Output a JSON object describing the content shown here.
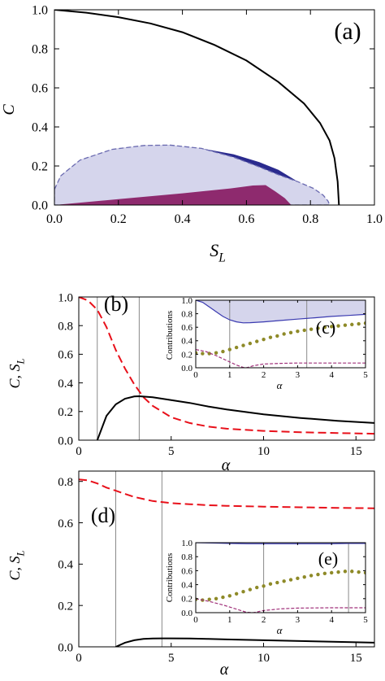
{
  "figure": {
    "panels": [
      {
        "id": "a",
        "label": "(a)"
      },
      {
        "id": "b",
        "label": "(b)"
      },
      {
        "id": "c",
        "label": "(c)"
      },
      {
        "id": "d",
        "label": "(d)"
      },
      {
        "id": "e",
        "label": "(e)"
      }
    ]
  },
  "chart_data": [
    {
      "id": "a",
      "type": "area",
      "label": "(a)",
      "xlabel": "S_L",
      "ylabel": "C",
      "xlim": [
        0,
        1
      ],
      "ylim": [
        0,
        1
      ],
      "xticks": [
        "0.0",
        "0.2",
        "0.4",
        "0.6",
        "0.8",
        "1.0"
      ],
      "yticks": [
        "0.0",
        "0.2",
        "0.4",
        "0.6",
        "0.8",
        "1.0"
      ],
      "series": [
        {
          "kind": "line",
          "color": "#000000",
          "x": [
            0,
            0.1,
            0.2,
            0.3,
            0.4,
            0.5,
            0.6,
            0.7,
            0.78,
            0.83,
            0.86,
            0.875,
            0.885,
            0.889
          ],
          "y": [
            1.0,
            0.985,
            0.962,
            0.93,
            0.885,
            0.82,
            0.74,
            0.63,
            0.52,
            0.42,
            0.33,
            0.24,
            0.12,
            0.0
          ]
        },
        {
          "kind": "region",
          "color": "#2a2a8e",
          "x": [
            0.0,
            0.02,
            0.08,
            0.18,
            0.28,
            0.36,
            0.46,
            0.56,
            0.64,
            0.7,
            0.75,
            0.79,
            0.81,
            0.82,
            0.82,
            0.79,
            0.72,
            0.6,
            0.4,
            0.2,
            0.0
          ],
          "y": [
            0.08,
            0.15,
            0.23,
            0.285,
            0.305,
            0.307,
            0.29,
            0.26,
            0.22,
            0.18,
            0.13,
            0.08,
            0.05,
            0.02,
            0.0,
            0.0,
            0.0,
            0.0,
            0.0,
            0.0,
            0.0
          ]
        },
        {
          "kind": "region",
          "color": "#d5d5ec",
          "border": "dashed",
          "border_color": "#6a6ab0",
          "x": [
            0.0,
            0.02,
            0.08,
            0.18,
            0.28,
            0.36,
            0.46,
            0.56,
            0.64,
            0.7,
            0.76,
            0.81,
            0.84,
            0.855,
            0.86,
            0.0
          ],
          "y": [
            0.08,
            0.15,
            0.23,
            0.285,
            0.305,
            0.307,
            0.29,
            0.245,
            0.195,
            0.155,
            0.12,
            0.085,
            0.05,
            0.02,
            0.0,
            0.0
          ]
        },
        {
          "kind": "region",
          "color": "#8e2a6e",
          "x": [
            0.0,
            0.2,
            0.4,
            0.55,
            0.62,
            0.66,
            0.69,
            0.72,
            0.74,
            0.0
          ],
          "y": [
            0.0,
            0.03,
            0.06,
            0.085,
            0.1,
            0.102,
            0.07,
            0.035,
            0.0,
            0.0
          ]
        }
      ]
    },
    {
      "id": "b",
      "type": "line",
      "label": "(b)",
      "xlabel": "α",
      "ylabel": "C,  S_L",
      "xlim": [
        0,
        16
      ],
      "ylim": [
        0,
        1
      ],
      "xticks": [
        "0",
        "5",
        "10",
        "15"
      ],
      "yticks": [
        "0.0",
        "0.2",
        "0.4",
        "0.6",
        "0.8",
        "1.0"
      ],
      "vlines": [
        1.0,
        3.27
      ],
      "series": [
        {
          "style": "dashed",
          "color": "#e8101a",
          "x": [
            0,
            0.5,
            1,
            1.5,
            2,
            2.5,
            3,
            3.5,
            4,
            5,
            6,
            7,
            8,
            10,
            12,
            14,
            16
          ],
          "y": [
            1.0,
            0.975,
            0.91,
            0.79,
            0.63,
            0.5,
            0.39,
            0.3,
            0.24,
            0.16,
            0.12,
            0.095,
            0.08,
            0.065,
            0.055,
            0.05,
            0.045
          ]
        },
        {
          "style": "solid",
          "color": "#000000",
          "x": [
            1.0,
            1.5,
            2,
            2.5,
            3,
            3.27,
            4,
            5,
            6,
            7,
            8,
            10,
            12,
            14,
            16
          ],
          "y": [
            0.0,
            0.17,
            0.25,
            0.29,
            0.305,
            0.307,
            0.3,
            0.28,
            0.26,
            0.235,
            0.215,
            0.18,
            0.155,
            0.135,
            0.12
          ]
        }
      ]
    },
    {
      "id": "c",
      "type": "line",
      "label": "(c)",
      "xlabel": "α",
      "ylabel": "Contributions",
      "xlim": [
        0,
        5
      ],
      "ylim": [
        0,
        1
      ],
      "xticks": [
        "0",
        "1",
        "2",
        "3",
        "4",
        "5"
      ],
      "yticks": [
        "0.0",
        "0.2",
        "0.4",
        "0.6",
        "0.8",
        "1.0"
      ],
      "vlines": [
        1.0,
        3.27
      ],
      "series": [
        {
          "style": "solid",
          "color": "#3a3ab0",
          "fill": "#d5d5ec",
          "x": [
            0,
            0.2,
            0.4,
            0.6,
            0.8,
            1.0,
            1.2,
            1.4,
            1.6,
            2,
            2.5,
            3,
            3.5,
            4,
            4.5,
            5
          ],
          "y": [
            1.0,
            0.97,
            0.9,
            0.83,
            0.76,
            0.71,
            0.68,
            0.665,
            0.668,
            0.68,
            0.7,
            0.72,
            0.74,
            0.76,
            0.775,
            0.79
          ]
        },
        {
          "style": "dotted",
          "color": "#8e8a28",
          "x": [
            0,
            0.2,
            0.4,
            0.6,
            0.8,
            1.0,
            1.2,
            1.4,
            1.6,
            1.8,
            2.0,
            2.2,
            2.4,
            2.6,
            2.8,
            3.0,
            3.2,
            3.4,
            3.6,
            3.8,
            4.0,
            4.2,
            4.4,
            4.6,
            4.8,
            5.0
          ],
          "y": [
            0.22,
            0.21,
            0.21,
            0.22,
            0.24,
            0.27,
            0.3,
            0.33,
            0.36,
            0.39,
            0.42,
            0.45,
            0.47,
            0.5,
            0.52,
            0.54,
            0.555,
            0.57,
            0.585,
            0.6,
            0.61,
            0.62,
            0.63,
            0.64,
            0.65,
            0.66
          ]
        },
        {
          "style": "dashed",
          "color": "#a0307a",
          "x": [
            0,
            0.3,
            0.6,
            0.9,
            1.2,
            1.4,
            1.5,
            1.7,
            2.0,
            2.5,
            3,
            4,
            5
          ],
          "y": [
            0.27,
            0.24,
            0.18,
            0.11,
            0.04,
            0.005,
            0.0,
            0.03,
            0.055,
            0.065,
            0.07,
            0.07,
            0.07
          ]
        }
      ]
    },
    {
      "id": "d",
      "type": "line",
      "label": "(d)",
      "xlabel": "α",
      "ylabel": "C,  S_L",
      "xlim": [
        0,
        16
      ],
      "ylim": [
        0,
        0.85
      ],
      "xticks": [
        "0",
        "5",
        "10",
        "15"
      ],
      "yticks": [
        "0.0",
        "0.2",
        "0.4",
        "0.6",
        "0.8"
      ],
      "vlines": [
        2.0,
        4.5
      ],
      "series": [
        {
          "style": "dashed",
          "color": "#e8101a",
          "x": [
            0,
            0.5,
            1,
            1.5,
            2,
            2.5,
            3,
            4,
            5,
            6,
            7,
            8,
            10,
            12,
            14,
            16
          ],
          "y": [
            0.81,
            0.805,
            0.79,
            0.77,
            0.755,
            0.74,
            0.725,
            0.705,
            0.695,
            0.69,
            0.685,
            0.682,
            0.678,
            0.675,
            0.672,
            0.67
          ]
        },
        {
          "style": "solid",
          "color": "#000000",
          "x": [
            2.0,
            2.5,
            3,
            3.5,
            4,
            4.5,
            5,
            6,
            7,
            8,
            10,
            12,
            14,
            16
          ],
          "y": [
            0.0,
            0.02,
            0.032,
            0.038,
            0.04,
            0.041,
            0.041,
            0.04,
            0.038,
            0.036,
            0.032,
            0.028,
            0.024,
            0.02
          ]
        }
      ]
    },
    {
      "id": "e",
      "type": "line",
      "label": "(e)",
      "xlabel": "α",
      "ylabel": "Contributions",
      "xlim": [
        0,
        5
      ],
      "ylim": [
        0,
        1
      ],
      "xticks": [
        "0",
        "1",
        "2",
        "3",
        "4",
        "5"
      ],
      "yticks": [
        "0.0",
        "0.2",
        "0.4",
        "0.6",
        "0.8",
        "1.0"
      ],
      "vlines": [
        2.0,
        4.5
      ],
      "series": [
        {
          "style": "solid",
          "color": "#3a3ab0",
          "fill": "#d5d5ec",
          "x": [
            0,
            0.5,
            1,
            1.5,
            2,
            2.5,
            3,
            3.5,
            4,
            4.5,
            5
          ],
          "y": [
            1.0,
            0.995,
            0.99,
            0.985,
            0.985,
            0.985,
            0.985,
            0.985,
            0.985,
            0.99,
            0.99
          ]
        },
        {
          "style": "dotted",
          "color": "#8e8a28",
          "x": [
            0,
            0.2,
            0.4,
            0.6,
            0.8,
            1.0,
            1.2,
            1.4,
            1.6,
            1.8,
            2.0,
            2.2,
            2.4,
            2.6,
            2.8,
            3.0,
            3.2,
            3.4,
            3.6,
            3.8,
            4.0,
            4.2,
            4.4,
            4.6,
            4.8,
            5.0
          ],
          "y": [
            0.19,
            0.18,
            0.19,
            0.2,
            0.22,
            0.24,
            0.27,
            0.3,
            0.33,
            0.36,
            0.38,
            0.41,
            0.43,
            0.45,
            0.47,
            0.49,
            0.51,
            0.53,
            0.545,
            0.56,
            0.57,
            0.58,
            0.59,
            0.59,
            0.58,
            0.57
          ]
        },
        {
          "style": "dashed",
          "color": "#a0307a",
          "x": [
            0,
            0.4,
            0.8,
            1.2,
            1.5,
            1.7,
            2.0,
            2.5,
            3,
            4,
            5
          ],
          "y": [
            0.2,
            0.16,
            0.11,
            0.05,
            0.005,
            0.0,
            0.03,
            0.055,
            0.065,
            0.07,
            0.07
          ]
        }
      ]
    }
  ]
}
